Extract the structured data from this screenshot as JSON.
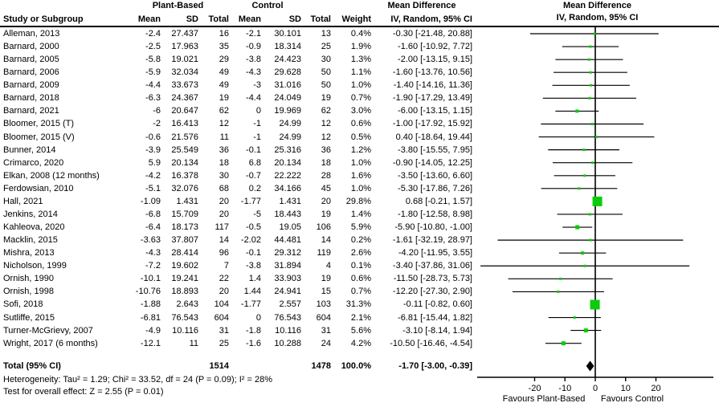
{
  "header": {
    "group_plant": "Plant-Based",
    "group_control": "Control",
    "group_md": "Mean Difference",
    "study_col": "Study or Subgroup",
    "mean": "Mean",
    "sd": "SD",
    "total": "Total",
    "weight": "Weight",
    "md_sub": "IV, Random, 95% CI",
    "plot_title": "Mean Difference",
    "plot_sub": "IV, Random, 95% CI"
  },
  "footer": {
    "total_label": "Total (95% CI)",
    "heterogeneity": "Heterogeneity: Tau² = 1.29; Chi² = 33.52, df = 24 (P = 0.09); I² = 28%",
    "overall_effect": "Test for overall effect: Z = 2.55 (P = 0.01)"
  },
  "colors": {
    "marker_green": "#0acc0a",
    "line_black": "#000000"
  },
  "chart_data": {
    "type": "scatter",
    "variant": "forest-plot",
    "title": "Mean Difference — IV, Random, 95% CI",
    "xlim": [
      -40,
      40
    ],
    "x_ticks": [
      -20,
      -10,
      0,
      10,
      20
    ],
    "favours_left": "Favours Plant-Based",
    "favours_right": "Favours Control",
    "studies": [
      {
        "name": "Alleman, 2013",
        "pb_mean": "-2.4",
        "pb_sd": "27.437",
        "pb_total": "16",
        "c_mean": "-2.1",
        "c_sd": "30.101",
        "c_total": "13",
        "weight": "0.4%",
        "w": 0.4,
        "md": "-0.30 [-21.48, 20.88]",
        "est": -0.3,
        "lo": -21.48,
        "hi": 20.88
      },
      {
        "name": "Barnard, 2000",
        "pb_mean": "-2.5",
        "pb_sd": "17.963",
        "pb_total": "35",
        "c_mean": "-0.9",
        "c_sd": "18.314",
        "c_total": "25",
        "weight": "1.9%",
        "w": 1.9,
        "md": "-1.60 [-10.92, 7.72]",
        "est": -1.6,
        "lo": -10.92,
        "hi": 7.72
      },
      {
        "name": "Barnard, 2005",
        "pb_mean": "-5.8",
        "pb_sd": "19.021",
        "pb_total": "29",
        "c_mean": "-3.8",
        "c_sd": "24.423",
        "c_total": "30",
        "weight": "1.3%",
        "w": 1.3,
        "md": "-2.00 [-13.15, 9.15]",
        "est": -2.0,
        "lo": -13.15,
        "hi": 9.15
      },
      {
        "name": "Barnard, 2006",
        "pb_mean": "-5.9",
        "pb_sd": "32.034",
        "pb_total": "49",
        "c_mean": "-4.3",
        "c_sd": "29.628",
        "c_total": "50",
        "weight": "1.1%",
        "w": 1.1,
        "md": "-1.60 [-13.76, 10.56]",
        "est": -1.6,
        "lo": -13.76,
        "hi": 10.56
      },
      {
        "name": "Barnard, 2009",
        "pb_mean": "-4.4",
        "pb_sd": "33.673",
        "pb_total": "49",
        "c_mean": "-3",
        "c_sd": "31.016",
        "c_total": "50",
        "weight": "1.0%",
        "w": 1.0,
        "md": "-1.40 [-14.16, 11.36]",
        "est": -1.4,
        "lo": -14.16,
        "hi": 11.36
      },
      {
        "name": "Barnard, 2018",
        "pb_mean": "-6.3",
        "pb_sd": "24.367",
        "pb_total": "19",
        "c_mean": "-4.4",
        "c_sd": "24.049",
        "c_total": "19",
        "weight": "0.7%",
        "w": 0.7,
        "md": "-1.90 [-17.29, 13.49]",
        "est": -1.9,
        "lo": -17.29,
        "hi": 13.49
      },
      {
        "name": "Barnard, 2021",
        "pb_mean": "-6",
        "pb_sd": "20.647",
        "pb_total": "62",
        "c_mean": "0",
        "c_sd": "19.969",
        "c_total": "62",
        "weight": "3.0%",
        "w": 3.0,
        "md": "-6.00 [-13.15, 1.15]",
        "est": -6.0,
        "lo": -13.15,
        "hi": 1.15
      },
      {
        "name": "Bloomer, 2015 (T)",
        "pb_mean": "-2",
        "pb_sd": "16.413",
        "pb_total": "12",
        "c_mean": "-1",
        "c_sd": "24.99",
        "c_total": "12",
        "weight": "0.6%",
        "w": 0.6,
        "md": "-1.00 [-17.92, 15.92]",
        "est": -1.0,
        "lo": -17.92,
        "hi": 15.92
      },
      {
        "name": "Bloomer, 2015 (V)",
        "pb_mean": "-0.6",
        "pb_sd": "21.576",
        "pb_total": "11",
        "c_mean": "-1",
        "c_sd": "24.99",
        "c_total": "12",
        "weight": "0.5%",
        "w": 0.5,
        "md": "0.40 [-18.64, 19.44]",
        "est": 0.4,
        "lo": -18.64,
        "hi": 19.44
      },
      {
        "name": "Bunner, 2014",
        "pb_mean": "-3.9",
        "pb_sd": "25.549",
        "pb_total": "36",
        "c_mean": "-0.1",
        "c_sd": "25.316",
        "c_total": "36",
        "weight": "1.2%",
        "w": 1.2,
        "md": "-3.80 [-15.55, 7.95]",
        "est": -3.8,
        "lo": -15.55,
        "hi": 7.95
      },
      {
        "name": "Crimarco, 2020",
        "pb_mean": "5.9",
        "pb_sd": "20.134",
        "pb_total": "18",
        "c_mean": "6.8",
        "c_sd": "20.134",
        "c_total": "18",
        "weight": "1.0%",
        "w": 1.0,
        "md": "-0.90 [-14.05, 12.25]",
        "est": -0.9,
        "lo": -14.05,
        "hi": 12.25
      },
      {
        "name": "Elkan, 2008 (12 months)",
        "pb_mean": "-4.2",
        "pb_sd": "16.378",
        "pb_total": "30",
        "c_mean": "-0.7",
        "c_sd": "22.222",
        "c_total": "28",
        "weight": "1.6%",
        "w": 1.6,
        "md": "-3.50 [-13.60, 6.60]",
        "est": -3.5,
        "lo": -13.6,
        "hi": 6.6
      },
      {
        "name": "Ferdowsian, 2010",
        "pb_mean": "-5.1",
        "pb_sd": "32.076",
        "pb_total": "68",
        "c_mean": "0.2",
        "c_sd": "34.166",
        "c_total": "45",
        "weight": "1.0%",
        "w": 1.0,
        "md": "-5.30 [-17.86, 7.26]",
        "est": -5.3,
        "lo": -17.86,
        "hi": 7.26
      },
      {
        "name": "Hall, 2021",
        "pb_mean": "-1.09",
        "pb_sd": "1.431",
        "pb_total": "20",
        "c_mean": "-1.77",
        "c_sd": "1.431",
        "c_total": "20",
        "weight": "29.8%",
        "w": 29.8,
        "md": "0.68 [-0.21, 1.57]",
        "est": 0.68,
        "lo": -0.21,
        "hi": 1.57
      },
      {
        "name": "Jenkins, 2014",
        "pb_mean": "-6.8",
        "pb_sd": "15.709",
        "pb_total": "20",
        "c_mean": "-5",
        "c_sd": "18.443",
        "c_total": "19",
        "weight": "1.4%",
        "w": 1.4,
        "md": "-1.80 [-12.58, 8.98]",
        "est": -1.8,
        "lo": -12.58,
        "hi": 8.98
      },
      {
        "name": "Kahleova, 2020",
        "pb_mean": "-6.4",
        "pb_sd": "18.173",
        "pb_total": "117",
        "c_mean": "-0.5",
        "c_sd": "19.05",
        "c_total": "106",
        "weight": "5.9%",
        "w": 5.9,
        "md": "-5.90 [-10.80, -1.00]",
        "est": -5.9,
        "lo": -10.8,
        "hi": -1.0
      },
      {
        "name": "Macklin, 2015",
        "pb_mean": "-3.63",
        "pb_sd": "37.807",
        "pb_total": "14",
        "c_mean": "-2.02",
        "c_sd": "44.481",
        "c_total": "14",
        "weight": "0.2%",
        "w": 0.2,
        "md": "-1.61 [-32.19, 28.97]",
        "est": -1.61,
        "lo": -32.19,
        "hi": 28.97
      },
      {
        "name": "Mishra, 2013",
        "pb_mean": "-4.3",
        "pb_sd": "28.414",
        "pb_total": "96",
        "c_mean": "-0.1",
        "c_sd": "29.312",
        "c_total": "119",
        "weight": "2.6%",
        "w": 2.6,
        "md": "-4.20 [-11.95, 3.55]",
        "est": -4.2,
        "lo": -11.95,
        "hi": 3.55
      },
      {
        "name": "Nicholson, 1999",
        "pb_mean": "-7.2",
        "pb_sd": "19.602",
        "pb_total": "7",
        "c_mean": "-3.8",
        "c_sd": "31.894",
        "c_total": "4",
        "weight": "0.1%",
        "w": 0.1,
        "md": "-3.40 [-37.86, 31.06]",
        "est": -3.4,
        "lo": -37.86,
        "hi": 31.06
      },
      {
        "name": "Ornish, 1990",
        "pb_mean": "-10.1",
        "pb_sd": "19.241",
        "pb_total": "22",
        "c_mean": "1.4",
        "c_sd": "33.903",
        "c_total": "19",
        "weight": "0.6%",
        "w": 0.6,
        "md": "-11.50 [-28.73, 5.73]",
        "est": -11.5,
        "lo": -28.73,
        "hi": 5.73
      },
      {
        "name": "Ornish, 1998",
        "pb_mean": "-10.76",
        "pb_sd": "18.893",
        "pb_total": "20",
        "c_mean": "1.44",
        "c_sd": "24.941",
        "c_total": "15",
        "weight": "0.7%",
        "w": 0.7,
        "md": "-12.20 [-27.30, 2.90]",
        "est": -12.2,
        "lo": -27.3,
        "hi": 2.9
      },
      {
        "name": "Sofi, 2018",
        "pb_mean": "-1.88",
        "pb_sd": "2.643",
        "pb_total": "104",
        "c_mean": "-1.77",
        "c_sd": "2.557",
        "c_total": "103",
        "weight": "31.3%",
        "w": 31.3,
        "md": "-0.11 [-0.82, 0.60]",
        "est": -0.11,
        "lo": -0.82,
        "hi": 0.6
      },
      {
        "name": "Sutliffe, 2015",
        "pb_mean": "-6.81",
        "pb_sd": "76.543",
        "pb_total": "604",
        "c_mean": "0",
        "c_sd": "76.543",
        "c_total": "604",
        "weight": "2.1%",
        "w": 2.1,
        "md": "-6.81 [-15.44, 1.82]",
        "est": -6.81,
        "lo": -15.44,
        "hi": 1.82
      },
      {
        "name": "Turner-McGrievy, 2007",
        "pb_mean": "-4.9",
        "pb_sd": "10.116",
        "pb_total": "31",
        "c_mean": "-1.8",
        "c_sd": "10.116",
        "c_total": "31",
        "weight": "5.6%",
        "w": 5.6,
        "md": "-3.10 [-8.14, 1.94]",
        "est": -3.1,
        "lo": -8.14,
        "hi": 1.94
      },
      {
        "name": "Wright, 2017 (6 months)",
        "pb_mean": "-12.1",
        "pb_sd": "11",
        "pb_total": "25",
        "c_mean": "-1.6",
        "c_sd": "10.288",
        "c_total": "24",
        "weight": "4.2%",
        "w": 4.2,
        "md": "-10.50 [-16.46, -4.54]",
        "est": -10.5,
        "lo": -16.46,
        "hi": -4.54
      }
    ],
    "summary": {
      "pb_total": "1514",
      "c_total": "1478",
      "weight": "100.0%",
      "md": "-1.70 [-3.00, -0.39]",
      "est": -1.7,
      "lo": -3.0,
      "hi": -0.39
    }
  }
}
